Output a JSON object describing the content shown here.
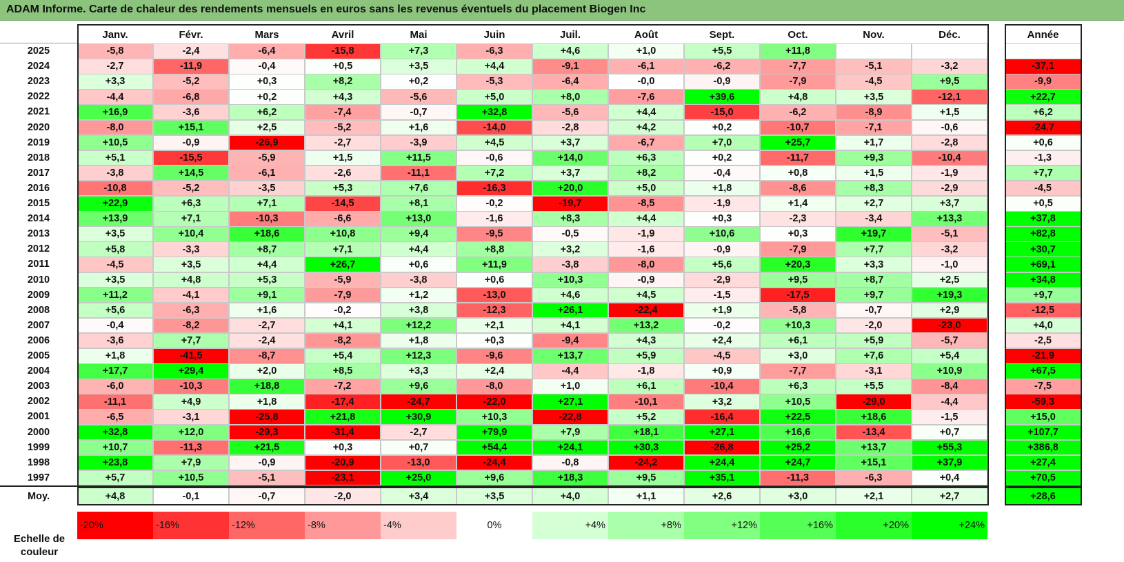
{
  "title": "ADAM Informe. Carte de chaleur des rendements mensuels en euros sans les revenus éventuels du placement Biogen Inc",
  "chart_data": {
    "type": "heatmap",
    "columns": [
      "Janv.",
      "Févr.",
      "Mars",
      "Avril",
      "Mai",
      "Juin",
      "Juil.",
      "Août",
      "Sept.",
      "Oct.",
      "Nov.",
      "Déc."
    ],
    "year_column_label": "Année",
    "rows": [
      {
        "year": "2025",
        "values": [
          "-5,8",
          "-2,4",
          "-6,4",
          "-15,8",
          "+7,3",
          "-6,3",
          "+4,6",
          "+1,0",
          "+5,5",
          "+11,8",
          "",
          ""
        ],
        "annual": ""
      },
      {
        "year": "2024",
        "values": [
          "-2,7",
          "-11,9",
          "-0,4",
          "+0,5",
          "+3,5",
          "+4,4",
          "-9,1",
          "-6,1",
          "-6,2",
          "-7,7",
          "-5,1",
          "-3,2"
        ],
        "annual": "-37,1"
      },
      {
        "year": "2023",
        "values": [
          "+3,3",
          "-5,2",
          "+0,3",
          "+8,2",
          "+0,2",
          "-5,3",
          "-6,4",
          "-0,0",
          "-0,9",
          "-7,9",
          "-4,5",
          "+9,5"
        ],
        "annual": "-9,9"
      },
      {
        "year": "2022",
        "values": [
          "-4,4",
          "-6,8",
          "+0,2",
          "+4,3",
          "-5,6",
          "+5,0",
          "+8,0",
          "-7,6",
          "+39,6",
          "+4,8",
          "+3,5",
          "-12,1"
        ],
        "annual": "+22,7"
      },
      {
        "year": "2021",
        "values": [
          "+16,9",
          "-3,6",
          "+6,2",
          "-7,4",
          "-0,7",
          "+32,8",
          "-5,6",
          "+4,4",
          "-15,0",
          "-6,2",
          "-8,9",
          "+1,5"
        ],
        "annual": "+6,2"
      },
      {
        "year": "2020",
        "values": [
          "-8,0",
          "+15,1",
          "+2,5",
          "-5,2",
          "+1,6",
          "-14,0",
          "-2,8",
          "+4,2",
          "+0,2",
          "-10,7",
          "-7,1",
          "-0,6"
        ],
        "annual": "-24,7"
      },
      {
        "year": "2019",
        "values": [
          "+10,5",
          "-0,9",
          "-26,9",
          "-2,7",
          "-3,9",
          "+4,5",
          "+3,7",
          "-6,7",
          "+7,0",
          "+25,7",
          "+1,7",
          "-2,8"
        ],
        "annual": "+0,6"
      },
      {
        "year": "2018",
        "values": [
          "+5,1",
          "-15,5",
          "-5,9",
          "+1,5",
          "+11,5",
          "-0,6",
          "+14,0",
          "+6,3",
          "+0,2",
          "-11,7",
          "+9,3",
          "-10,4"
        ],
        "annual": "-1,3"
      },
      {
        "year": "2017",
        "values": [
          "-3,8",
          "+14,5",
          "-6,1",
          "-2,6",
          "-11,1",
          "+7,2",
          "+3,7",
          "+8,2",
          "-0,4",
          "+0,8",
          "+1,5",
          "-1,9"
        ],
        "annual": "+7,7"
      },
      {
        "year": "2016",
        "values": [
          "-10,8",
          "-5,2",
          "-3,5",
          "+5,3",
          "+7,6",
          "-16,3",
          "+20,0",
          "+5,0",
          "+1,8",
          "-8,6",
          "+8,3",
          "-2,9"
        ],
        "annual": "-4,5"
      },
      {
        "year": "2015",
        "values": [
          "+22,9",
          "+6,3",
          "+7,1",
          "-14,5",
          "+8,1",
          "-0,2",
          "-19,7",
          "-8,5",
          "-1,9",
          "+1,4",
          "+2,7",
          "+3,7"
        ],
        "annual": "+0,5"
      },
      {
        "year": "2014",
        "values": [
          "+13,9",
          "+7,1",
          "-10,3",
          "-6,6",
          "+13,0",
          "-1,6",
          "+8,3",
          "+4,4",
          "+0,3",
          "-2,3",
          "-3,4",
          "+13,3"
        ],
        "annual": "+37,8"
      },
      {
        "year": "2013",
        "values": [
          "+3,5",
          "+10,4",
          "+18,6",
          "+10,8",
          "+9,4",
          "-9,5",
          "-0,5",
          "-1,9",
          "+10,6",
          "+0,3",
          "+19,7",
          "-5,1"
        ],
        "annual": "+82,8"
      },
      {
        "year": "2012",
        "values": [
          "+5,8",
          "-3,3",
          "+8,7",
          "+7,1",
          "+4,4",
          "+8,8",
          "+3,2",
          "-1,6",
          "-0,9",
          "-7,9",
          "+7,7",
          "-3,2"
        ],
        "annual": "+30,7"
      },
      {
        "year": "2011",
        "values": [
          "-4,5",
          "+3,5",
          "+4,4",
          "+26,7",
          "+0,6",
          "+11,9",
          "-3,8",
          "-8,0",
          "+5,6",
          "+20,3",
          "+3,3",
          "-1,0"
        ],
        "annual": "+69,1"
      },
      {
        "year": "2010",
        "values": [
          "+3,5",
          "+4,8",
          "+5,3",
          "-5,9",
          "-3,8",
          "+0,6",
          "+10,3",
          "-0,9",
          "-2,9",
          "+9,5",
          "+8,7",
          "+2,5"
        ],
        "annual": "+34,8"
      },
      {
        "year": "2009",
        "values": [
          "+11,2",
          "-4,1",
          "+9,1",
          "-7,9",
          "+1,2",
          "-13,0",
          "+4,6",
          "+4,5",
          "-1,5",
          "-17,5",
          "+9,7",
          "+19,3"
        ],
        "annual": "+9,7"
      },
      {
        "year": "2008",
        "values": [
          "+5,6",
          "-6,3",
          "+1,6",
          "-0,2",
          "+3,8",
          "-12,3",
          "+26,1",
          "-22,4",
          "+1,9",
          "-5,8",
          "-0,7",
          "+2,9"
        ],
        "annual": "-12,5"
      },
      {
        "year": "2007",
        "values": [
          "-0,4",
          "-8,2",
          "-2,7",
          "+4,1",
          "+12,2",
          "+2,1",
          "+4,1",
          "+13,2",
          "-0,2",
          "+10,3",
          "-2,0",
          "-23,0"
        ],
        "annual": "+4,0"
      },
      {
        "year": "2006",
        "values": [
          "-3,6",
          "+7,7",
          "-2,4",
          "-8,2",
          "+1,8",
          "+0,3",
          "-9,4",
          "+4,3",
          "+2,4",
          "+6,1",
          "+5,9",
          "-5,7"
        ],
        "annual": "-2,5"
      },
      {
        "year": "2005",
        "values": [
          "+1,8",
          "-41,5",
          "-8,7",
          "+5,4",
          "+12,3",
          "-9,6",
          "+13,7",
          "+5,9",
          "-4,5",
          "+3,0",
          "+7,6",
          "+5,4"
        ],
        "annual": "-21,9"
      },
      {
        "year": "2004",
        "values": [
          "+17,7",
          "+29,4",
          "+2,0",
          "+8,5",
          "+3,3",
          "+2,4",
          "-4,4",
          "-1,8",
          "+0,9",
          "-7,7",
          "-3,1",
          "+10,9"
        ],
        "annual": "+67,5"
      },
      {
        "year": "2003",
        "values": [
          "-6,0",
          "-10,3",
          "+18,8",
          "-7,2",
          "+9,6",
          "-8,0",
          "+1,0",
          "+6,1",
          "-10,4",
          "+6,3",
          "+5,5",
          "-8,4"
        ],
        "annual": "-7,5"
      },
      {
        "year": "2002",
        "values": [
          "-11,1",
          "+4,9",
          "+1,8",
          "-17,4",
          "-24,7",
          "-22,0",
          "+27,1",
          "-10,1",
          "+3,2",
          "+10,5",
          "-29,0",
          "-4,4"
        ],
        "annual": "-59,3"
      },
      {
        "year": "2001",
        "values": [
          "-6,5",
          "-3,1",
          "-25,8",
          "+21,8",
          "+30,9",
          "+10,3",
          "-22,8",
          "+5,2",
          "-16,4",
          "+22,5",
          "+18,6",
          "-1,5"
        ],
        "annual": "+15,0"
      },
      {
        "year": "2000",
        "values": [
          "+32,8",
          "+12,0",
          "-29,3",
          "-31,4",
          "-2,7",
          "+79,9",
          "+7,9",
          "+18,1",
          "+27,1",
          "+16,6",
          "-13,4",
          "+0,7"
        ],
        "annual": "+107,7"
      },
      {
        "year": "1999",
        "values": [
          "+10,7",
          "-11,3",
          "+21,5",
          "+0,3",
          "+0,7",
          "+54,4",
          "+24,1",
          "+30,3",
          "-26,8",
          "+25,2",
          "+13,7",
          "+55,3"
        ],
        "annual": "+386,8"
      },
      {
        "year": "1998",
        "values": [
          "+23,8",
          "+7,9",
          "-0,9",
          "-20,9",
          "-13,0",
          "-24,4",
          "-0,8",
          "-24,2",
          "+24,4",
          "+24,7",
          "+15,1",
          "+37,9"
        ],
        "annual": "+27,4"
      },
      {
        "year": "1997",
        "values": [
          "+5,7",
          "+10,5",
          "-5,1",
          "-23,1",
          "+25,0",
          "+9,6",
          "+18,3",
          "+9,5",
          "+35,1",
          "-11,3",
          "-6,3",
          "+0,4"
        ],
        "annual": "+70,5"
      }
    ],
    "average": {
      "label": "Moy.",
      "values": [
        "+4,8",
        "-0,1",
        "-0,7",
        "-2,0",
        "+3,4",
        "+3,5",
        "+4,0",
        "+1,1",
        "+2,6",
        "+3,0",
        "+2,1",
        "+2,7"
      ],
      "annual": "+28,6"
    },
    "color_scale": {
      "label": "Echelle de couleur",
      "steps": [
        "-20%",
        "-16%",
        "-12%",
        "-8%",
        "-4%",
        "0%",
        "+4%",
        "+8%",
        "+12%",
        "+16%",
        "+20%",
        "+24%"
      ],
      "negative_color": "#ff0000",
      "neutral_color": "#ffffff",
      "positive_color": "#00ff00"
    }
  }
}
